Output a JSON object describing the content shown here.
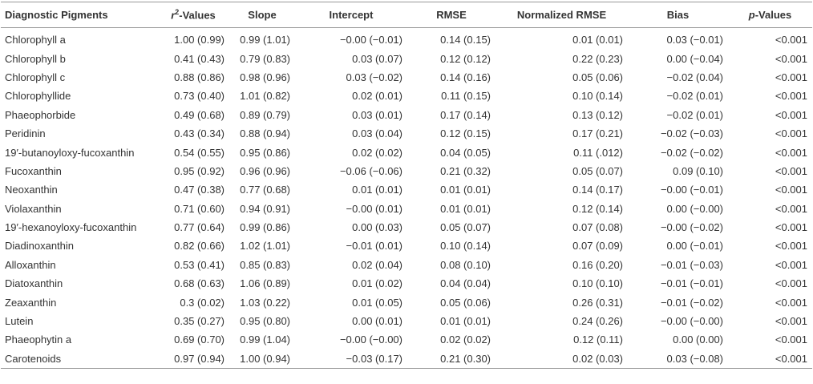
{
  "table": {
    "header": [
      {
        "parts": [
          {
            "text": "Diagnostic Pigments",
            "style": "normal"
          }
        ]
      },
      {
        "parts": [
          {
            "text": "r",
            "style": "italic"
          },
          {
            "text": "2",
            "style": "sup"
          },
          {
            "text": "-Values",
            "style": "normal"
          }
        ]
      },
      {
        "parts": [
          {
            "text": "Slope",
            "style": "normal"
          }
        ]
      },
      {
        "parts": [
          {
            "text": "Intercept",
            "style": "normal"
          }
        ]
      },
      {
        "parts": [
          {
            "text": "RMSE",
            "style": "normal"
          }
        ]
      },
      {
        "parts": [
          {
            "text": "Normalized RMSE",
            "style": "normal"
          }
        ]
      },
      {
        "parts": [
          {
            "text": "Bias",
            "style": "normal"
          }
        ]
      },
      {
        "parts": [
          {
            "text": "p",
            "style": "italic"
          },
          {
            "text": "-Values",
            "style": "normal"
          }
        ]
      }
    ],
    "rows": [
      [
        "Chlorophyll a",
        "1.00 (0.99)",
        "0.99 (1.01)",
        "−0.00 (−0.01)",
        "0.14 (0.15)",
        "0.01 (0.01)",
        "0.03 (−0.01)",
        "<0.001"
      ],
      [
        "Chlorophyll b",
        "0.41 (0.43)",
        "0.79 (0.83)",
        "0.03 (0.07)",
        "0.12 (0.12)",
        "0.22 (0.23)",
        "0.00 (−0.04)",
        "<0.001"
      ],
      [
        "Chlorophyll c",
        "0.88 (0.86)",
        "0.98 (0.96)",
        "0.03 (−0.02)",
        "0.14 (0.16)",
        "0.05 (0.06)",
        "−0.02 (0.04)",
        "<0.001"
      ],
      [
        "Chlorophyllide",
        "0.73 (0.40)",
        "1.01 (0.82)",
        "0.02 (0.01)",
        "0.11 (0.15)",
        "0.10 (0.14)",
        "−0.02 (0.01)",
        "<0.001"
      ],
      [
        "Phaeophorbide",
        "0.49 (0.68)",
        "0.89 (0.79)",
        "0.03 (0.01)",
        "0.17 (0.14)",
        "0.13 (0.12)",
        "−0.02 (0.01)",
        "<0.001"
      ],
      [
        "Peridinin",
        "0.43 (0.34)",
        "0.88 (0.94)",
        "0.03 (0.04)",
        "0.12 (0.15)",
        "0.17 (0.21)",
        "−0.02 (−0.03)",
        "<0.001"
      ],
      [
        "19′-butanoyloxy-fucoxanthin",
        "0.54 (0.55)",
        "0.95 (0.86)",
        "0.02 (0.02)",
        "0.04 (0.05)",
        "0.11 (.012)",
        "−0.02 (−0.02)",
        "<0.001"
      ],
      [
        "Fucoxanthin",
        "0.95 (0.92)",
        "0.96 (0.96)",
        "−0.06 (−0.06)",
        "0.21 (0.32)",
        "0.05 (0.07)",
        "0.09 (0.10)",
        "<0.001"
      ],
      [
        "Neoxanthin",
        "0.47 (0.38)",
        "0.77 (0.68)",
        "0.01 (0.01)",
        "0.01 (0.01)",
        "0.14 (0.17)",
        "−0.00 (−0.01)",
        "<0.001"
      ],
      [
        "Violaxanthin",
        "0.71 (0.60)",
        "0.94 (0.91)",
        "−0.00 (0.01)",
        "0.01 (0.01)",
        "0.12 (0.14)",
        "0.00 (−0.00)",
        "<0.001"
      ],
      [
        "19′-hexanoyloxy-fucoxanthin",
        "0.77 (0.64)",
        "0.99 (0.86)",
        "0.00 (0.03)",
        "0.05 (0.07)",
        "0.07 (0.08)",
        "−0.00 (−0.02)",
        "<0.001"
      ],
      [
        "Diadinoxanthin",
        "0.82 (0.66)",
        "1.02 (1.01)",
        "−0.01 (0.01)",
        "0.10 (0.14)",
        "0.07 (0.09)",
        "0.00 (−0.01)",
        "<0.001"
      ],
      [
        "Alloxanthin",
        "0.53 (0.41)",
        "0.85 (0.83)",
        "0.02 (0.04)",
        "0.08 (0.10)",
        "0.16 (0.20)",
        "−0.01 (−0.03)",
        "<0.001"
      ],
      [
        "Diatoxanthin",
        "0.68 (0.63)",
        "1.06 (0.89)",
        "0.01 (0.02)",
        "0.04 (0.04)",
        "0.10 (0.10)",
        "−0.01 (−0.01)",
        "<0.001"
      ],
      [
        "Zeaxanthin",
        "0.3 (0.02)",
        "1.03 (0.22)",
        "0.01 (0.05)",
        "0.05 (0.06)",
        "0.26 (0.31)",
        "−0.01 (−0.02)",
        "<0.001"
      ],
      [
        "Lutein",
        "0.35 (0.27)",
        "0.95 (0.80)",
        "0.00 (0.01)",
        "0.01 (0.01)",
        "0.24 (0.26)",
        "−0.00 (−0.00)",
        "<0.001"
      ],
      [
        "Phaeophytin a",
        "0.69 (0.70)",
        "0.99 (1.04)",
        "−0.00 (−0.00)",
        "0.02 (0.02)",
        "0.12 (0.11)",
        "0.00 (0.00)",
        "<0.001"
      ],
      [
        "Carotenoids",
        "0.97 (0.94)",
        "1.00 (0.94)",
        "−0.03 (0.17)",
        "0.21 (0.30)",
        "0.02 (0.03)",
        "0.03 (−0.08)",
        "<0.001"
      ]
    ]
  }
}
